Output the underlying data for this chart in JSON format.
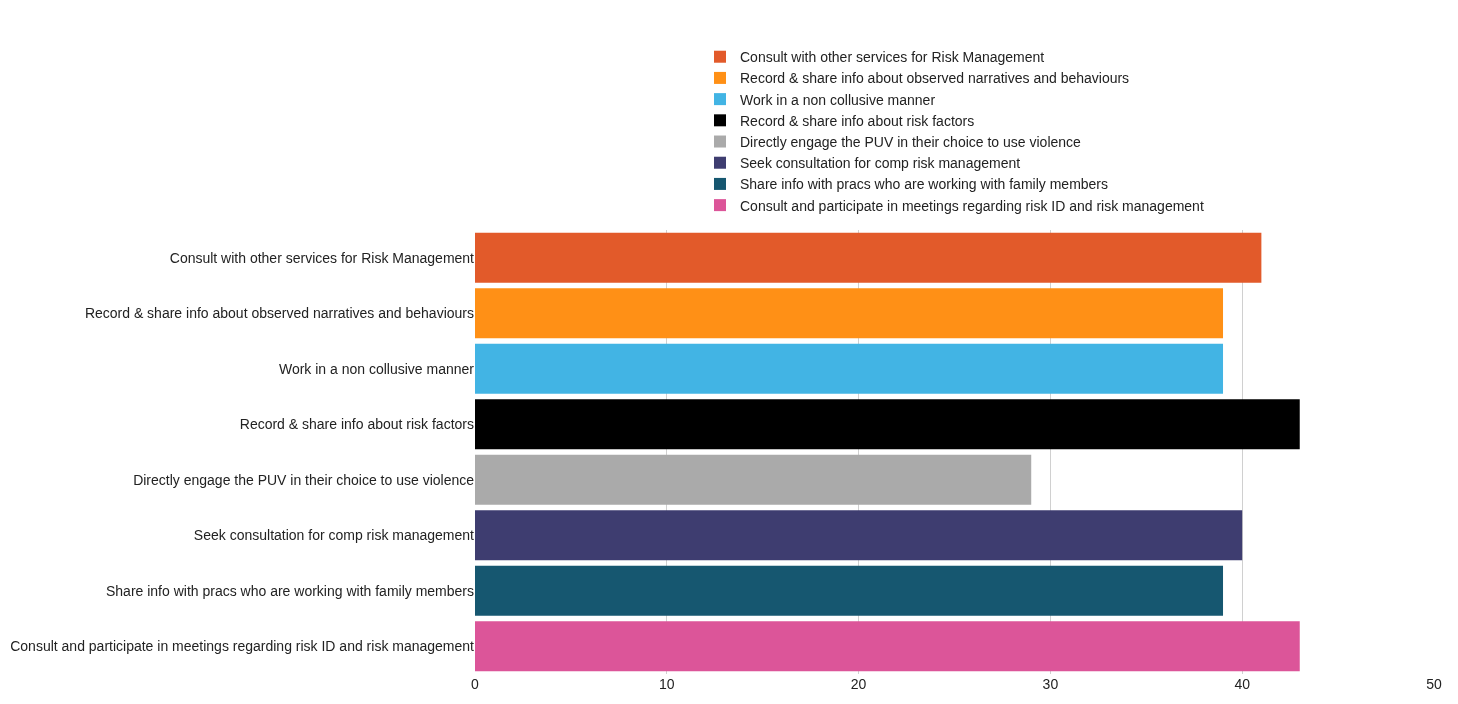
{
  "chart_data": {
    "type": "bar",
    "orientation": "horizontal",
    "categories": [
      "Consult with other services for Risk Management",
      "Record & share info about observed narratives and behaviours",
      "Work in a non collusive manner",
      "Record & share info about risk factors",
      "Directly engage the PUV in their choice to use violence",
      "Seek consultation for comp risk management",
      "Share info with pracs who are working with family members",
      "Consult and participate in meetings regarding risk ID and risk management"
    ],
    "series": [
      {
        "name": "Consult with other services for Risk Management",
        "color": "#e25a2a",
        "values": [
          41,
          null,
          null,
          null,
          null,
          null,
          null,
          null
        ]
      },
      {
        "name": "Record & share info about observed narratives and behaviours",
        "color": "#ff9016",
        "values": [
          null,
          39,
          null,
          null,
          null,
          null,
          null,
          null
        ]
      },
      {
        "name": "Work in a non collusive manner",
        "color": "#42b4e4",
        "values": [
          null,
          null,
          39,
          null,
          null,
          null,
          null,
          null
        ]
      },
      {
        "name": "Record & share info about risk factors",
        "color": "#000000",
        "values": [
          null,
          null,
          null,
          43,
          null,
          null,
          null,
          null
        ]
      },
      {
        "name": "Directly engage the PUV in their choice to use violence",
        "color": "#aaaaaa",
        "values": [
          null,
          null,
          null,
          null,
          29,
          null,
          null,
          null
        ]
      },
      {
        "name": "Seek consultation for comp risk management",
        "color": "#3e3d70",
        "values": [
          null,
          null,
          null,
          null,
          null,
          40,
          null,
          null
        ]
      },
      {
        "name": "Share info with pracs who are working with family members",
        "color": "#165770",
        "values": [
          null,
          null,
          null,
          null,
          null,
          null,
          39,
          null
        ]
      },
      {
        "name": "Consult and participate in meetings regarding risk ID and risk management",
        "color": "#dc5599",
        "values": [
          null,
          null,
          null,
          null,
          null,
          null,
          null,
          43
        ]
      }
    ],
    "xlim": [
      0,
      50
    ],
    "xticks": [
      0,
      10,
      20,
      30,
      40,
      50
    ],
    "grid": "x",
    "legend": "top"
  }
}
